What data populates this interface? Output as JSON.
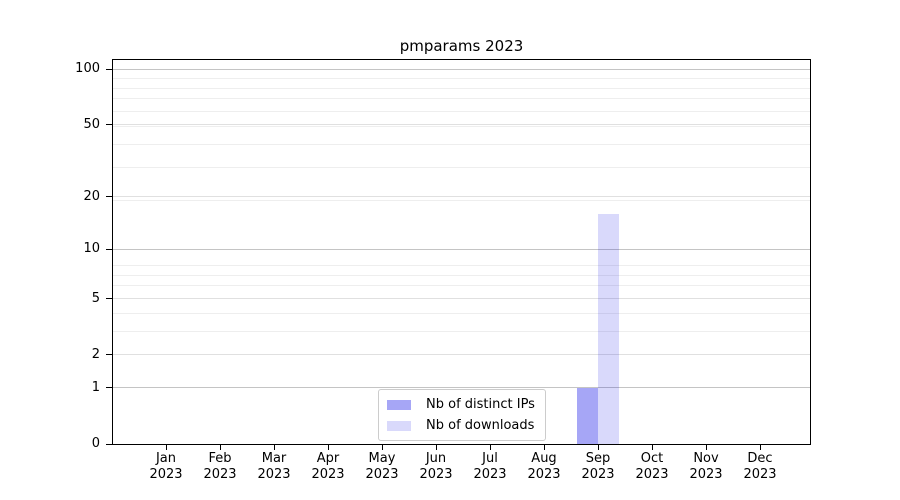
{
  "figure": {
    "background": "#ffffff"
  },
  "chart_data": {
    "type": "bar",
    "title": "pmparams 2023",
    "x_tick_months": [
      "Jan",
      "Feb",
      "Mar",
      "Apr",
      "May",
      "Jun",
      "Jul",
      "Aug",
      "Sep",
      "Oct",
      "Nov",
      "Dec"
    ],
    "x_tick_year": "2023",
    "series": [
      {
        "name": "Nb of distinct IPs",
        "color": "rgba(0,0,230,0.35)",
        "values": [
          0,
          0,
          0,
          0,
          0,
          0,
          0,
          0,
          1,
          0,
          0,
          0
        ]
      },
      {
        "name": "Nb of downloads",
        "color": "rgba(0,0,230,0.15)",
        "values": [
          0,
          0,
          0,
          0,
          0,
          0,
          0,
          0,
          16,
          0,
          0,
          0
        ]
      }
    ],
    "yscale": "log1p",
    "yticks": [
      0,
      1,
      2,
      5,
      10,
      20,
      50,
      100
    ],
    "ylim": [
      0,
      112
    ],
    "grid": "horizontal-major-and-minor",
    "legend_position": "lower-center",
    "axis_color": "#000000",
    "grid_major_decade_color": "#c4c4c4",
    "grid_major_color": "#e0e0e0",
    "grid_minor_color": "#eeeeee"
  }
}
